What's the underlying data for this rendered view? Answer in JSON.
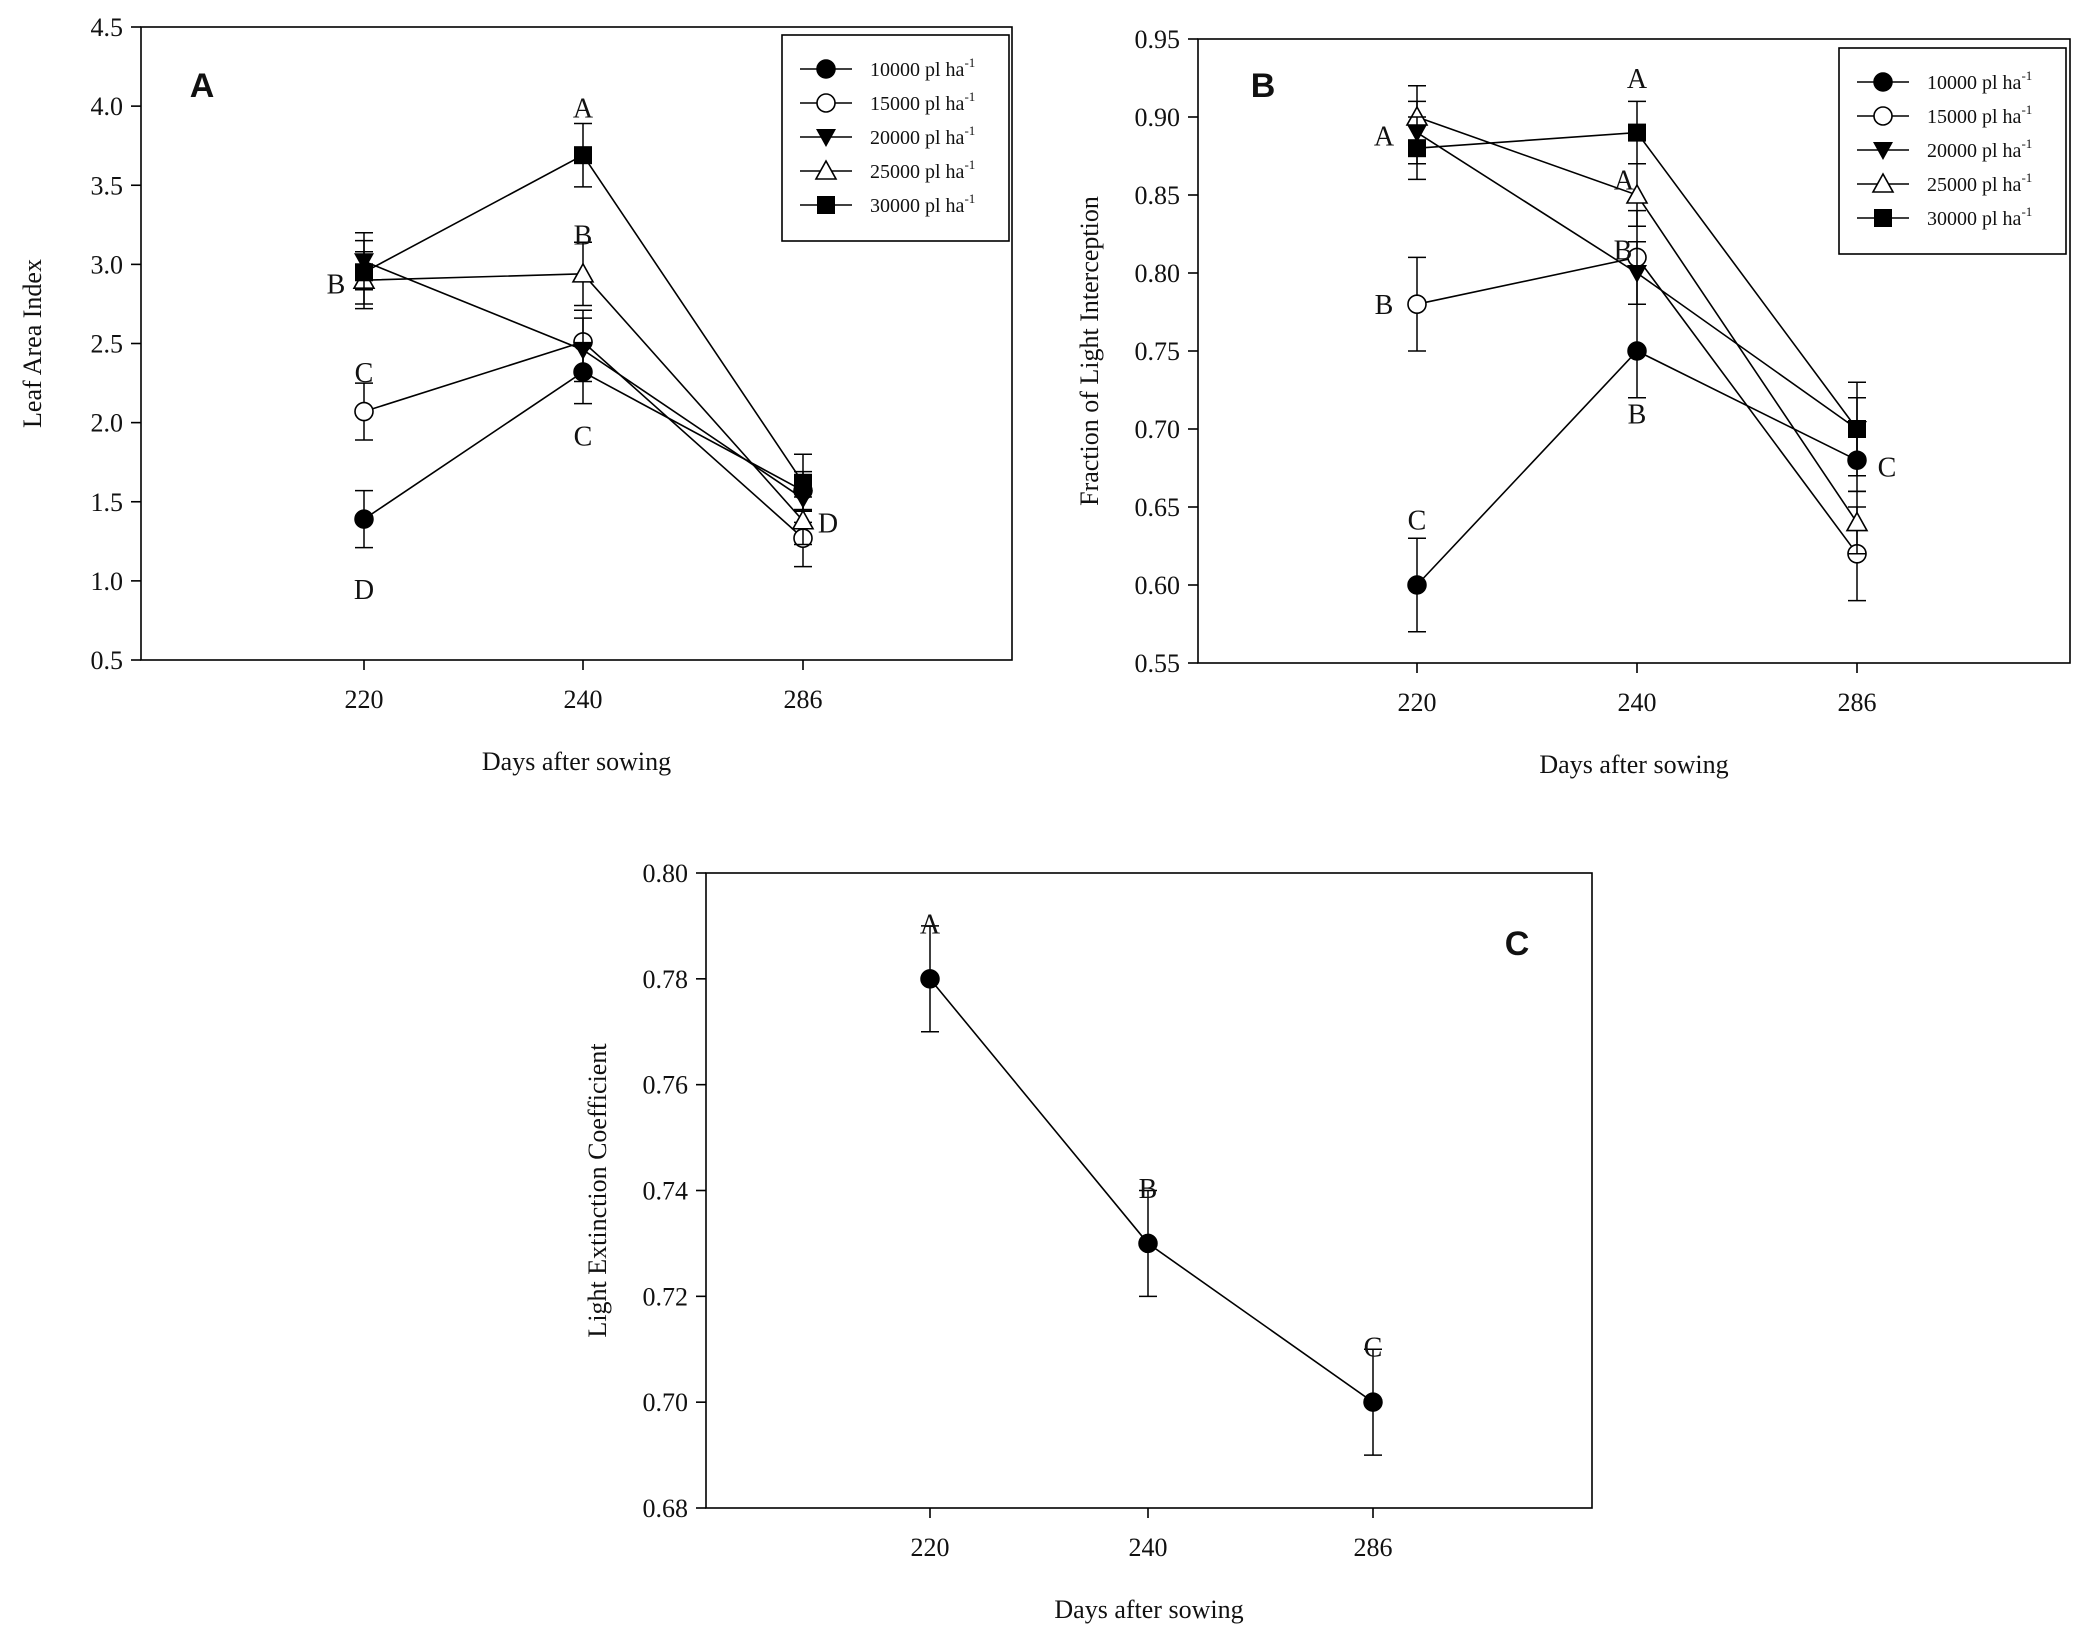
{
  "chart_data": [
    {
      "id": "A",
      "type": "line",
      "panel_label": "A",
      "xlabel": "Days after sowing",
      "ylabel": "Leaf Area Index",
      "categories": [
        "220",
        "240",
        "286"
      ],
      "ylim": [
        0.5,
        4.5
      ],
      "yticks": [
        "0.5",
        "1.0",
        "1.5",
        "2.0",
        "2.5",
        "3.0",
        "3.5",
        "4.0",
        "4.5"
      ],
      "grid": false,
      "legend_position": "top-right",
      "series": [
        {
          "name": "10000 pl ha",
          "sup": "-1",
          "marker": "filled-circle",
          "values": [
            1.39,
            2.32,
            1.57
          ],
          "errors": [
            0.18,
            0.2,
            0.12
          ]
        },
        {
          "name": "15000 pl ha",
          "sup": "-1",
          "marker": "open-circle",
          "values": [
            2.07,
            2.51,
            1.27
          ],
          "errors": [
            0.18,
            0.2,
            0.18
          ]
        },
        {
          "name": "20000 pl ha",
          "sup": "-1",
          "marker": "filled-triangle-down",
          "values": [
            3.02,
            2.46,
            1.52
          ],
          "errors": [
            0.18,
            0.2,
            0.15
          ]
        },
        {
          "name": "25000 pl ha",
          "sup": "-1",
          "marker": "open-triangle-up",
          "values": [
            2.9,
            2.94,
            1.38
          ],
          "errors": [
            0.18,
            0.2,
            0.15
          ]
        },
        {
          "name": "30000 pl ha",
          "sup": "-1",
          "marker": "filled-square",
          "values": [
            2.95,
            3.69,
            1.62
          ],
          "errors": [
            0.2,
            0.2,
            0.18
          ]
        }
      ],
      "annotations": [
        {
          "text": "A",
          "x": "240",
          "y": 3.99
        },
        {
          "text": "B",
          "x": "240",
          "y": 3.19
        },
        {
          "text": "C",
          "x": "240",
          "y": 1.92
        },
        {
          "text": "B",
          "x": "220",
          "y": 2.88
        },
        {
          "text": "C",
          "x": "220",
          "y": 2.32
        },
        {
          "text": "D",
          "x": "220",
          "y": 0.95
        },
        {
          "text": "D",
          "x": "286",
          "y": 1.37
        }
      ]
    },
    {
      "id": "B",
      "type": "line",
      "panel_label": "B",
      "xlabel": "Days after sowing",
      "ylabel": "Fraction of Light Interception",
      "categories": [
        "220",
        "240",
        "286"
      ],
      "ylim": [
        0.55,
        0.95
      ],
      "yticks": [
        "0.55",
        "0.60",
        "0.65",
        "0.70",
        "0.75",
        "0.80",
        "0.85",
        "0.90",
        "0.95"
      ],
      "grid": false,
      "legend_position": "top-right",
      "series": [
        {
          "name": "10000 pl ha",
          "sup": "-1",
          "marker": "filled-circle",
          "values": [
            0.6,
            0.75,
            0.68
          ],
          "errors": [
            0.03,
            0.03,
            0.02
          ]
        },
        {
          "name": "15000 pl ha",
          "sup": "-1",
          "marker": "open-circle",
          "values": [
            0.78,
            0.81,
            0.62
          ],
          "errors": [
            0.03,
            0.03,
            0.03
          ]
        },
        {
          "name": "20000 pl ha",
          "sup": "-1",
          "marker": "filled-triangle-down",
          "values": [
            0.89,
            0.8,
            0.7
          ],
          "errors": [
            0.02,
            0.02,
            0.02
          ]
        },
        {
          "name": "25000 pl ha",
          "sup": "-1",
          "marker": "open-triangle-up",
          "values": [
            0.9,
            0.85,
            0.64
          ],
          "errors": [
            0.02,
            0.02,
            0.02
          ]
        },
        {
          "name": "30000 pl ha",
          "sup": "-1",
          "marker": "filled-square",
          "values": [
            0.88,
            0.89,
            0.7
          ],
          "errors": [
            0.02,
            0.02,
            0.03
          ]
        }
      ],
      "annotations": [
        {
          "text": "A",
          "x": "240",
          "y": 0.925
        },
        {
          "text": "A",
          "x": "240",
          "y": 0.86
        },
        {
          "text": "B",
          "x": "240",
          "y": 0.815
        },
        {
          "text": "B",
          "x": "240",
          "y": 0.71
        },
        {
          "text": "A",
          "x": "220",
          "y": 0.888
        },
        {
          "text": "B",
          "x": "220",
          "y": 0.78
        },
        {
          "text": "C",
          "x": "220",
          "y": 0.642
        },
        {
          "text": "C",
          "x": "286",
          "y": 0.676
        }
      ]
    },
    {
      "id": "C",
      "type": "line",
      "panel_label": "C",
      "xlabel": "Days after sowing",
      "ylabel": "Light Extinction Coefficient",
      "categories": [
        "220",
        "240",
        "286"
      ],
      "ylim": [
        0.68,
        0.8
      ],
      "yticks": [
        "0.68",
        "0.70",
        "0.72",
        "0.74",
        "0.76",
        "0.78",
        "0.80"
      ],
      "grid": false,
      "legend_position": "none",
      "series": [
        {
          "name": "Light extinction coefficient",
          "marker": "filled-circle",
          "values": [
            0.78,
            0.73,
            0.7
          ],
          "errors": [
            0.01,
            0.01,
            0.01
          ]
        }
      ],
      "annotations": [
        {
          "text": "A",
          "x": "220",
          "y": 0.7905
        },
        {
          "text": "B",
          "x": "240",
          "y": 0.7405
        },
        {
          "text": "C",
          "x": "286",
          "y": 0.7105
        }
      ]
    }
  ]
}
